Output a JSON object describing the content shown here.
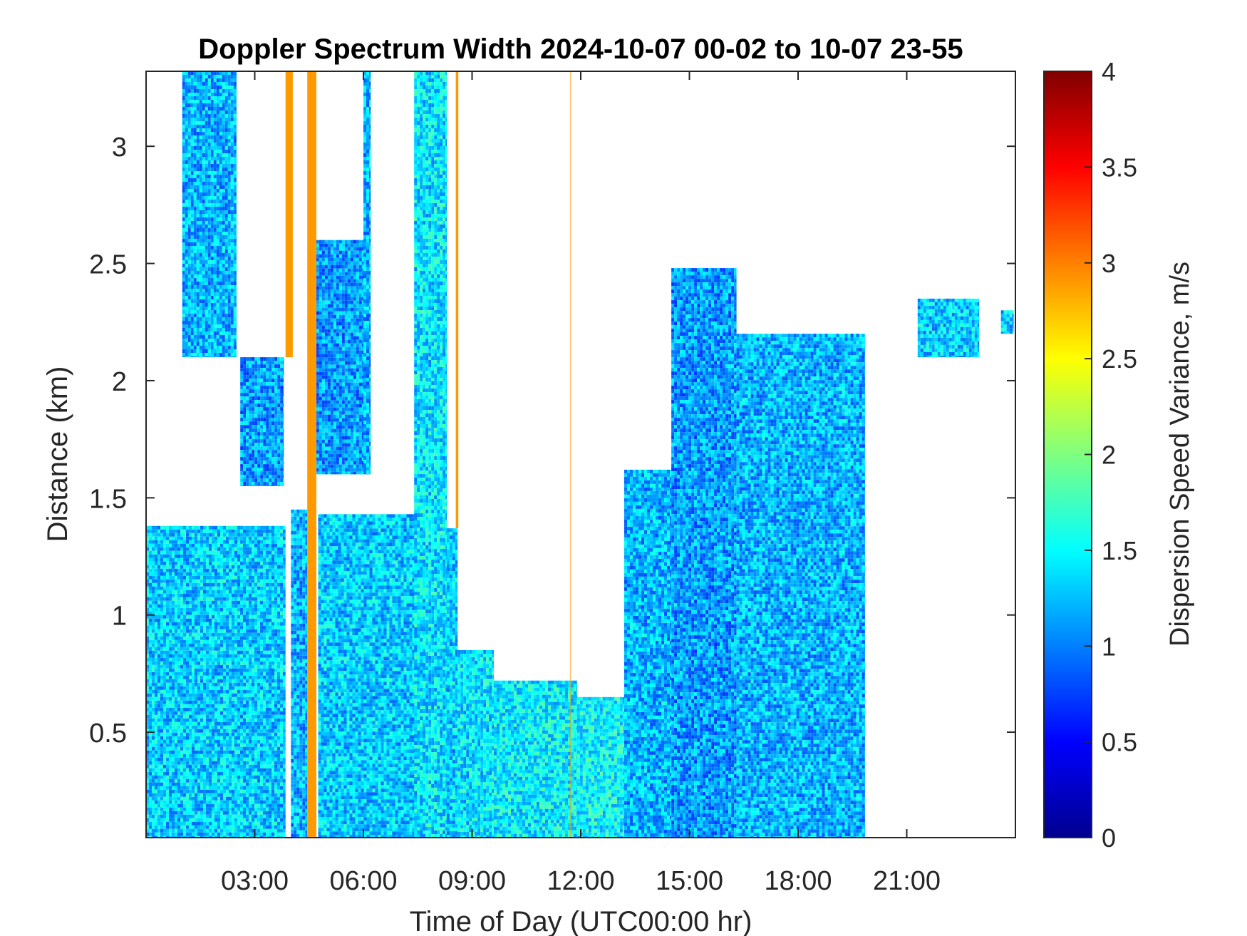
{
  "chart_data": {
    "type": "heatmap",
    "title": "Doppler Spectrum Width 2024-10-07 00-02 to 10-07 23-55",
    "xlabel": "Time of Day (UTC00:00 hr)",
    "ylabel": "Distance (km)",
    "colorbar_label": "Dispersion Speed Variance, m/s",
    "colormap": "jet",
    "xlim_hours": [
      0,
      24
    ],
    "ylim_km": [
      0.05,
      3.32
    ],
    "clim": [
      0,
      4
    ],
    "x_ticks": [
      {
        "value": 3,
        "label": "03:00"
      },
      {
        "value": 6,
        "label": "06:00"
      },
      {
        "value": 9,
        "label": "09:00"
      },
      {
        "value": 12,
        "label": "12:00"
      },
      {
        "value": 15,
        "label": "15:00"
      },
      {
        "value": 18,
        "label": "18:00"
      },
      {
        "value": 21,
        "label": "21:00"
      }
    ],
    "y_ticks": [
      {
        "value": 0.5,
        "label": "0.5"
      },
      {
        "value": 1,
        "label": "1"
      },
      {
        "value": 1.5,
        "label": "1.5"
      },
      {
        "value": 2,
        "label": "2"
      },
      {
        "value": 2.5,
        "label": "2.5"
      },
      {
        "value": 3,
        "label": "3"
      }
    ],
    "colorbar_ticks": [
      {
        "value": 0,
        "label": "0"
      },
      {
        "value": 0.5,
        "label": "0.5"
      },
      {
        "value": 1,
        "label": "1"
      },
      {
        "value": 1.5,
        "label": "1.5"
      },
      {
        "value": 2,
        "label": "2"
      },
      {
        "value": 2.5,
        "label": "2.5"
      },
      {
        "value": 3,
        "label": "3"
      },
      {
        "value": 3.5,
        "label": "3.5"
      },
      {
        "value": 4,
        "label": "4"
      }
    ],
    "grid": false,
    "regions": [
      {
        "t0": 0.0,
        "t1": 3.85,
        "h0": 0.05,
        "h1": 1.38,
        "value": 1.3
      },
      {
        "t0": 1.0,
        "t1": 2.5,
        "h0": 2.1,
        "h1": 3.32,
        "value": 1.2
      },
      {
        "t0": 2.6,
        "t1": 3.8,
        "h0": 1.55,
        "h1": 2.1,
        "value": 1.1
      },
      {
        "t0": 4.7,
        "t1": 6.0,
        "h0": 1.6,
        "h1": 2.6,
        "value": 1.1
      },
      {
        "t0": 6.0,
        "t1": 6.2,
        "h0": 1.6,
        "h1": 3.32,
        "value": 1.2
      },
      {
        "t0": 4.0,
        "t1": 4.45,
        "h0": 0.05,
        "h1": 1.45,
        "value": 1.2
      },
      {
        "t0": 4.75,
        "t1": 7.7,
        "h0": 0.05,
        "h1": 1.43,
        "value": 1.3
      },
      {
        "t0": 7.4,
        "t1": 8.3,
        "h0": 0.05,
        "h1": 3.32,
        "value": 1.4
      },
      {
        "t0": 8.3,
        "t1": 8.6,
        "h0": 0.05,
        "h1": 1.37,
        "value": 1.3
      },
      {
        "t0": 8.6,
        "t1": 9.6,
        "h0": 0.05,
        "h1": 0.85,
        "value": 1.4
      },
      {
        "t0": 9.6,
        "t1": 11.9,
        "h0": 0.05,
        "h1": 0.72,
        "value": 1.45
      },
      {
        "t0": 11.9,
        "t1": 13.2,
        "h0": 0.05,
        "h1": 0.65,
        "value": 1.5
      },
      {
        "t0": 13.2,
        "t1": 14.5,
        "h0": 0.05,
        "h1": 1.62,
        "value": 1.2
      },
      {
        "t0": 14.5,
        "t1": 16.3,
        "h0": 0.05,
        "h1": 2.48,
        "value": 1.1
      },
      {
        "t0": 16.3,
        "t1": 19.85,
        "h0": 0.05,
        "h1": 2.2,
        "value": 1.2
      },
      {
        "t0": 21.3,
        "t1": 23.0,
        "h0": 2.1,
        "h1": 2.35,
        "value": 1.3
      },
      {
        "t0": 23.6,
        "t1": 23.95,
        "h0": 2.2,
        "h1": 2.3,
        "value": 1.3
      }
    ],
    "streaks": [
      {
        "t0": 3.85,
        "t1": 4.05,
        "h0": 2.1,
        "h1": 3.32,
        "value": 2.9
      },
      {
        "t0": 4.45,
        "t1": 4.7,
        "h0": 0.05,
        "h1": 3.32,
        "value": 2.9
      },
      {
        "t0": 8.55,
        "t1": 8.62,
        "h0": 1.37,
        "h1": 3.32,
        "value": 2.9
      },
      {
        "t0": 11.7,
        "t1": 11.73,
        "h0": 0.05,
        "h1": 3.32,
        "value": 2.9
      }
    ]
  }
}
